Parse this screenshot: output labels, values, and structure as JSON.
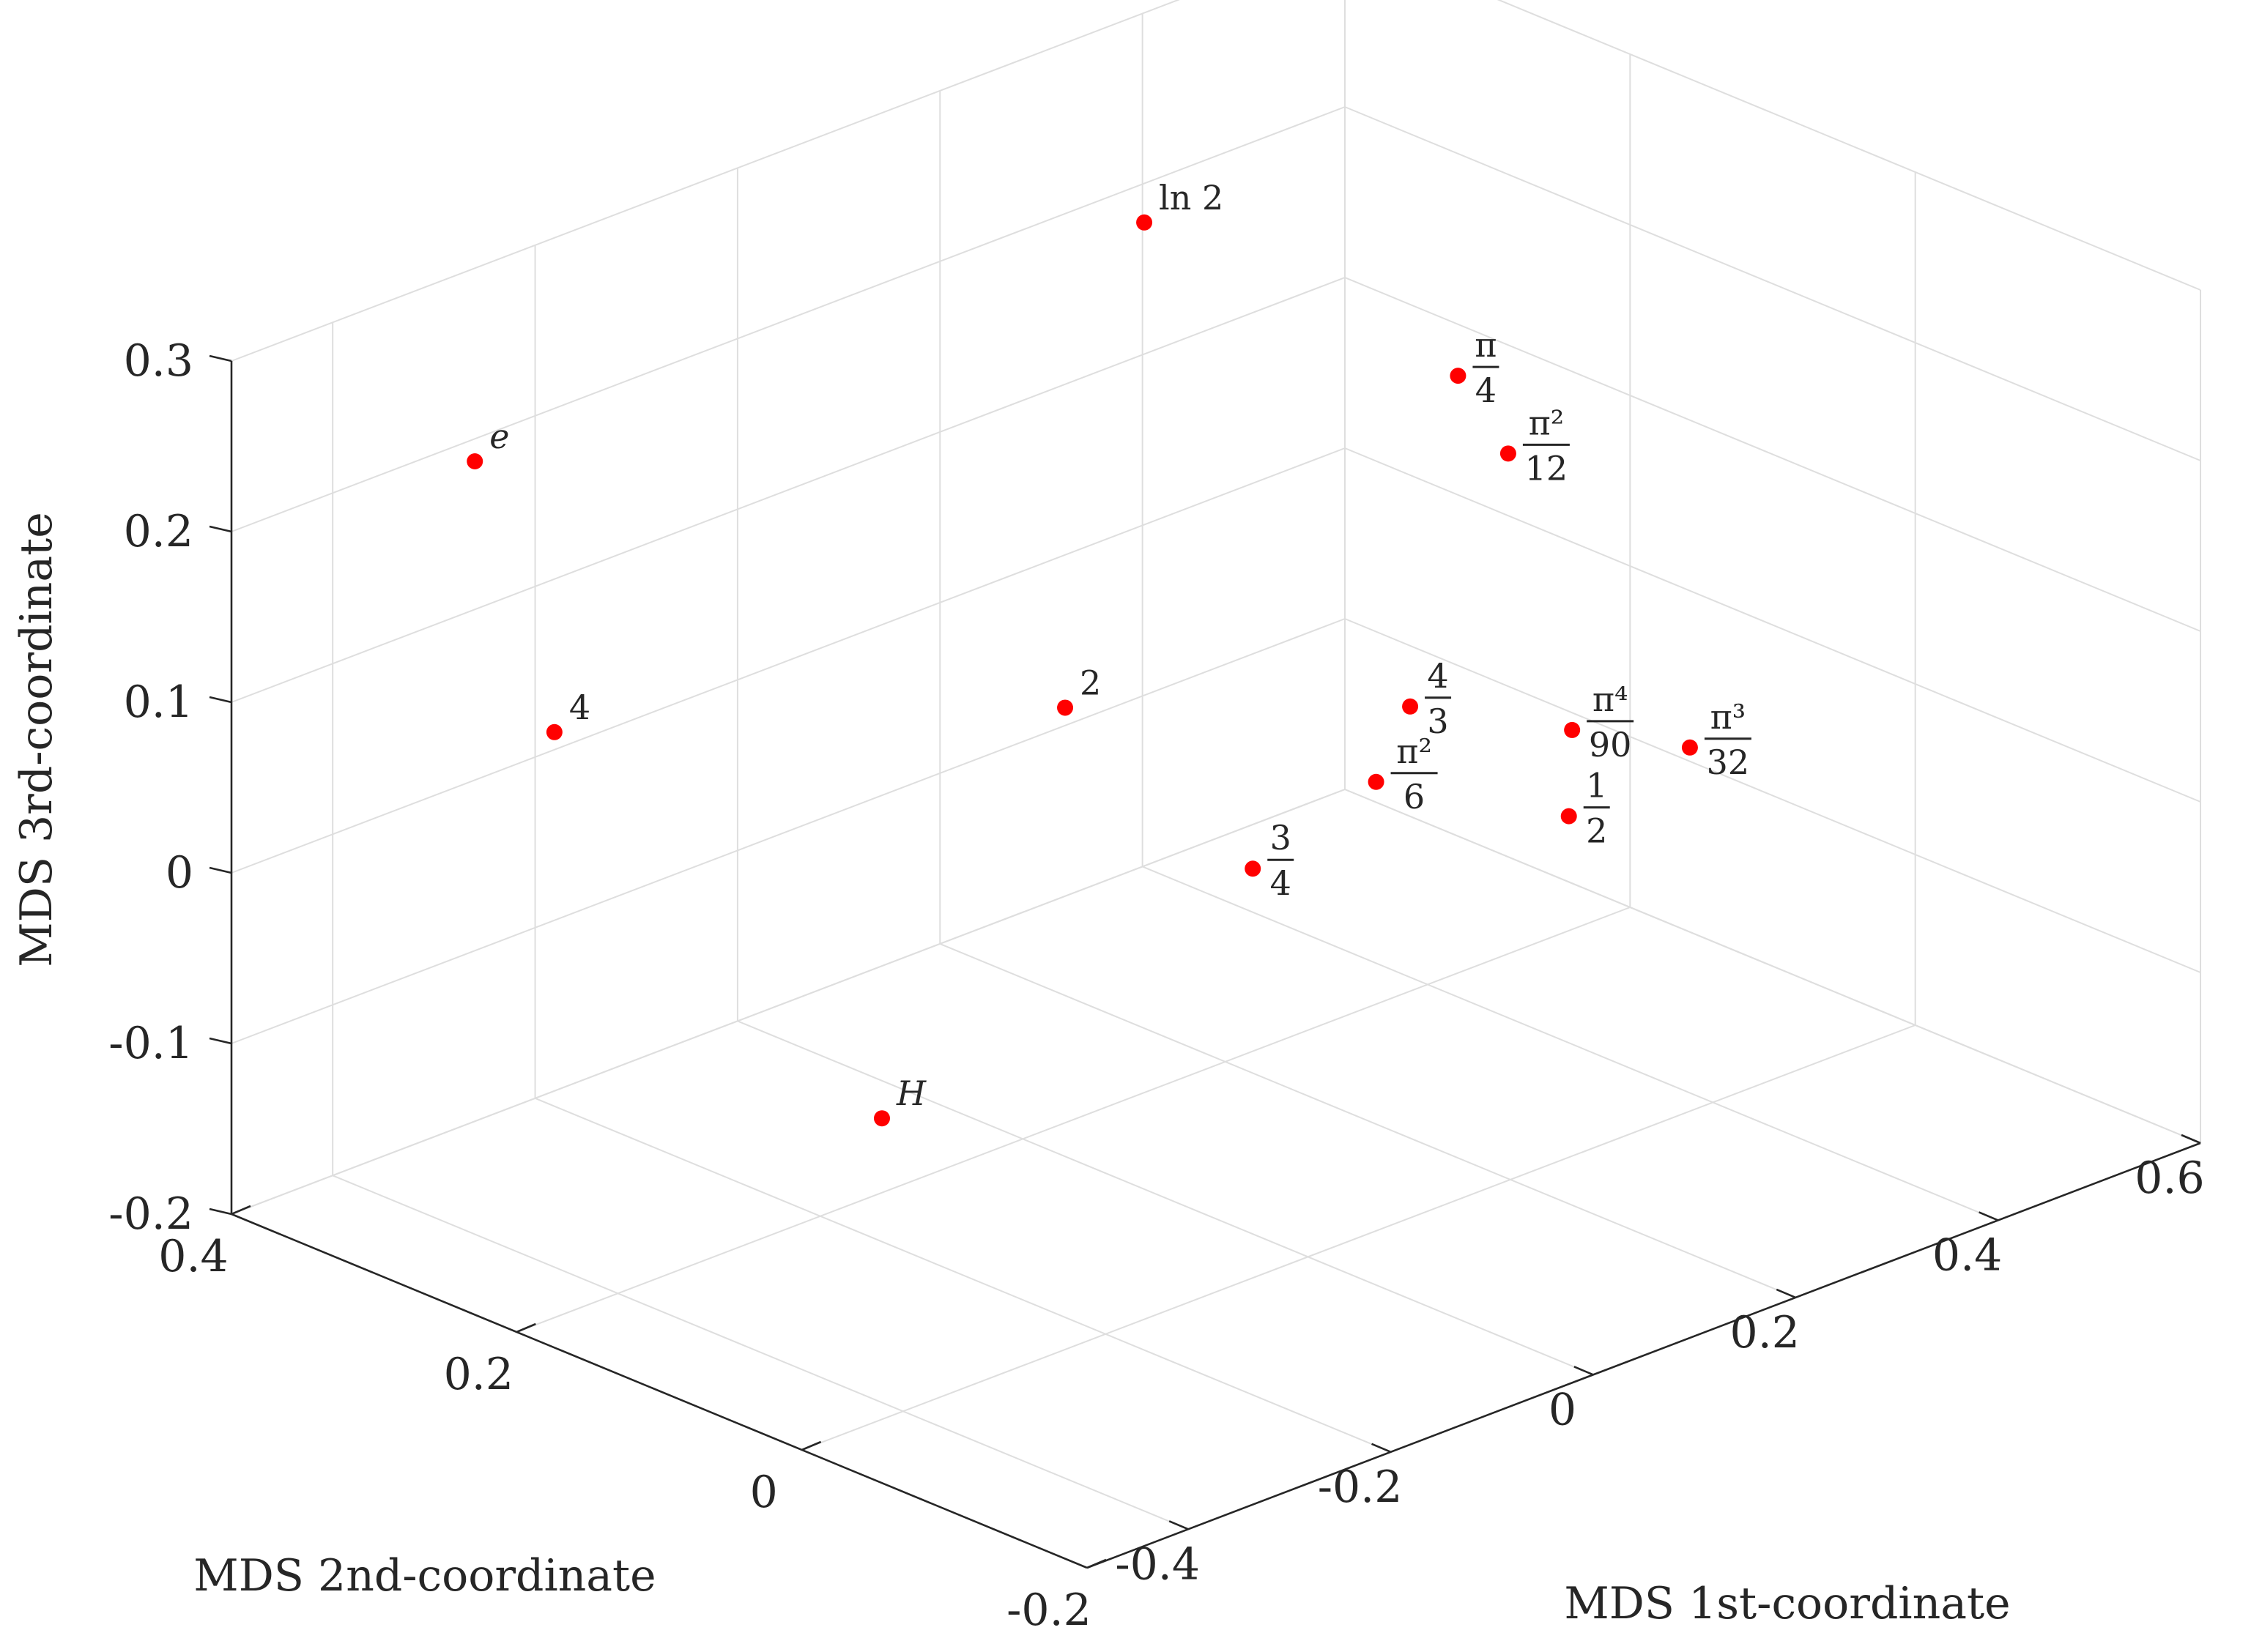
{
  "chart_data": {
    "type": "scatter3d",
    "title": "",
    "xlabel": "MDS 1st-coordinate",
    "ylabel": "MDS 2nd-coordinate",
    "zlabel": "MDS 3rd-coordinate",
    "xlim": [
      -0.5,
      0.6
    ],
    "ylim": [
      -0.2,
      0.4
    ],
    "zlim": [
      -0.2,
      0.3
    ],
    "xticks": [
      "-0.4",
      "-0.2",
      "0",
      "0.2",
      "0.4",
      "0.6"
    ],
    "yticks": [
      "-0.2",
      "0",
      "0.2",
      "0.4"
    ],
    "zticks": [
      "-0.2",
      "-0.1",
      "0",
      "0.1",
      "0.2",
      "0.3"
    ],
    "marker_color": "#ff0000",
    "points": [
      {
        "name": "ln2",
        "label": "ln 2",
        "x": 0.12,
        "y": 0.2,
        "z": 0.31
      },
      {
        "name": "e",
        "label": "e",
        "x": -0.33,
        "y": 0.35,
        "z": 0.22
      },
      {
        "name": "pi-over-4",
        "num": "π",
        "den": "4",
        "x": 0.43,
        "y": 0.2,
        "z": 0.15
      },
      {
        "name": "two",
        "label": "2",
        "x": 0.07,
        "y": 0.22,
        "z": 0.03
      },
      {
        "name": "four",
        "label": "4",
        "x": -0.35,
        "y": 0.28,
        "z": 0.09
      },
      {
        "name": "H",
        "label": "H",
        "x": -0.28,
        "y": 0.1,
        "z": -0.09
      },
      {
        "name": "three-quarters",
        "num": "3",
        "den": "4",
        "x": 0.03,
        "y": 0.06,
        "z": 0.0
      },
      {
        "name": "four-thirds",
        "num": "4",
        "den": "3",
        "x": 0.27,
        "y": 0.12,
        "z": 0.02
      },
      {
        "name": "pi2-over-6",
        "num": "π²",
        "den": "6",
        "x": 0.18,
        "y": 0.08,
        "z": 0.01
      },
      {
        "name": "one-half",
        "num": "1",
        "den": "2",
        "x": 0.3,
        "y": 0.03,
        "z": -0.02
      },
      {
        "name": "pi2-over-12",
        "num": "π²",
        "den": "12",
        "x": 0.55,
        "y": 0.25,
        "z": 0.06
      },
      {
        "name": "pi4-over-90",
        "num": "π⁴",
        "den": "90",
        "x": 0.43,
        "y": 0.12,
        "z": -0.03
      },
      {
        "name": "pi3-over-32",
        "num": "π³",
        "den": "32",
        "x": 0.49,
        "y": 0.08,
        "z": -0.04
      }
    ]
  }
}
